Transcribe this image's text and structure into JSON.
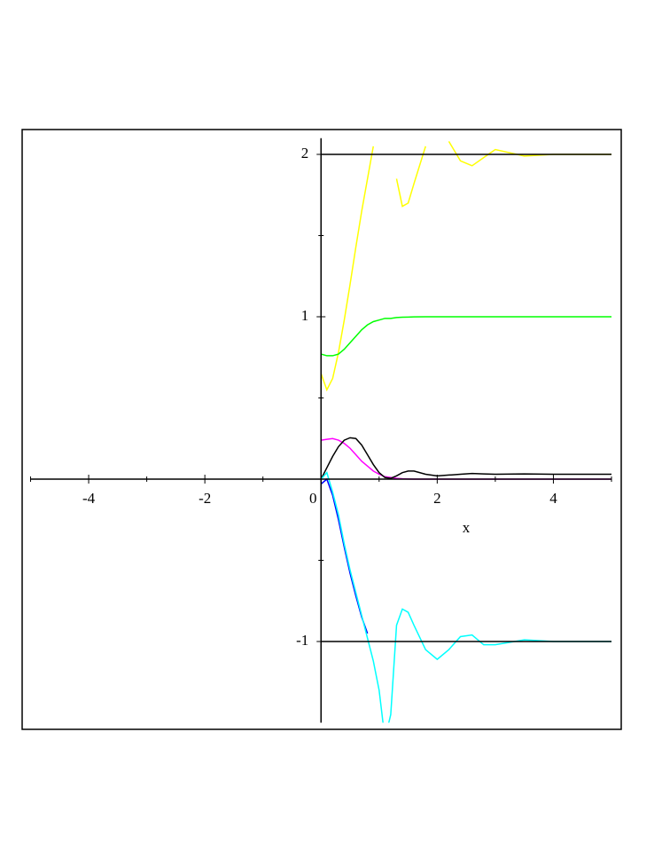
{
  "chart_data": {
    "type": "line",
    "x_label": "x",
    "x": [
      0,
      0.1,
      0.2,
      0.3,
      0.4,
      0.5,
      0.6,
      0.7,
      0.8,
      0.9,
      1.0,
      1.1,
      1.2,
      1.3,
      1.4,
      1.5,
      1.6,
      1.8,
      2.0,
      2.2,
      2.4,
      2.6,
      2.8,
      3.0,
      3.5,
      4.0,
      4.5,
      5.0
    ],
    "series": [
      {
        "color": "#ffff00",
        "values": [
          0.65,
          0.55,
          0.62,
          0.78,
          0.98,
          1.2,
          1.43,
          1.65,
          1.85,
          2.05,
          null,
          null,
          null,
          1.85,
          1.68,
          1.7,
          1.82,
          2.05,
          null,
          2.08,
          1.96,
          1.93,
          1.98,
          2.03,
          1.99,
          2.0,
          2.0,
          2.0
        ]
      },
      {
        "color": "#00ff00",
        "values": [
          0.77,
          0.76,
          0.76,
          0.77,
          0.8,
          0.84,
          0.88,
          0.92,
          0.95,
          0.97,
          0.98,
          0.99,
          0.99,
          0.995,
          0.997,
          0.998,
          0.999,
          1.0,
          1.0,
          1.0,
          1.0,
          1.0,
          1.0,
          1.0,
          1.0,
          1.0,
          1.0,
          1.0
        ]
      },
      {
        "color": "#ff00ff",
        "values": [
          0.24,
          0.245,
          0.25,
          0.24,
          0.22,
          0.19,
          0.15,
          0.11,
          0.08,
          0.05,
          0.03,
          0.015,
          0.01,
          0.005,
          0.002,
          0.001,
          0,
          0,
          0,
          0,
          0,
          0,
          0,
          0,
          0,
          0,
          0,
          0
        ]
      },
      {
        "color": "#000000",
        "values": [
          0,
          0.07,
          0.14,
          0.2,
          0.24,
          0.255,
          0.25,
          0.21,
          0.15,
          0.09,
          0.04,
          0.01,
          0.005,
          0.02,
          0.04,
          0.05,
          0.05,
          0.03,
          0.02,
          0.025,
          0.03,
          0.035,
          0.032,
          0.03,
          0.032,
          0.03,
          0.03,
          0.03
        ]
      },
      {
        "color": "#0000ff",
        "values": [
          -0.03,
          0.0,
          -0.1,
          -0.25,
          -0.42,
          -0.58,
          -0.72,
          -0.85,
          -0.95,
          null,
          null,
          null,
          null,
          null,
          null,
          null,
          null,
          null,
          null,
          null,
          null,
          null,
          null,
          null,
          null,
          null,
          null,
          null
        ]
      },
      {
        "color": "#00ffff",
        "values": [
          0.0,
          0.04,
          -0.08,
          -0.22,
          -0.4,
          -0.56,
          -0.7,
          -0.84,
          -0.98,
          -1.12,
          -1.3,
          -1.6,
          -1.45,
          -0.9,
          -0.8,
          -0.82,
          -0.9,
          -1.05,
          -1.11,
          -1.05,
          -0.97,
          -0.96,
          -1.02,
          -1.02,
          -0.99,
          -1.0,
          -1.0,
          -1.0
        ]
      },
      {
        "color": "#000000",
        "values": [
          2,
          2,
          2,
          2,
          2,
          2,
          2,
          2,
          2,
          2,
          2,
          2,
          2,
          2,
          2,
          2,
          2,
          2,
          2,
          2,
          2,
          2,
          2,
          2,
          2,
          2,
          2,
          2
        ]
      },
      {
        "color": "#000000",
        "values": [
          -1,
          -1,
          -1,
          -1,
          -1,
          -1,
          -1,
          -1,
          -1,
          -1,
          -1,
          -1,
          -1,
          -1,
          -1,
          -1,
          -1,
          -1,
          -1,
          -1,
          -1,
          -1,
          -1,
          -1,
          -1,
          -1,
          -1,
          -1
        ]
      }
    ],
    "xlim": [
      -5,
      5
    ],
    "ylim": [
      -1.5,
      2.1
    ],
    "xticks": [
      -4,
      -2,
      0,
      2,
      4
    ],
    "yticks": [
      -1,
      1,
      2
    ],
    "x_minor_ticks": [
      -5,
      -3,
      -1,
      1,
      3,
      5
    ],
    "y_minor_ticks": [
      -0.5,
      0.5,
      1.5
    ]
  }
}
